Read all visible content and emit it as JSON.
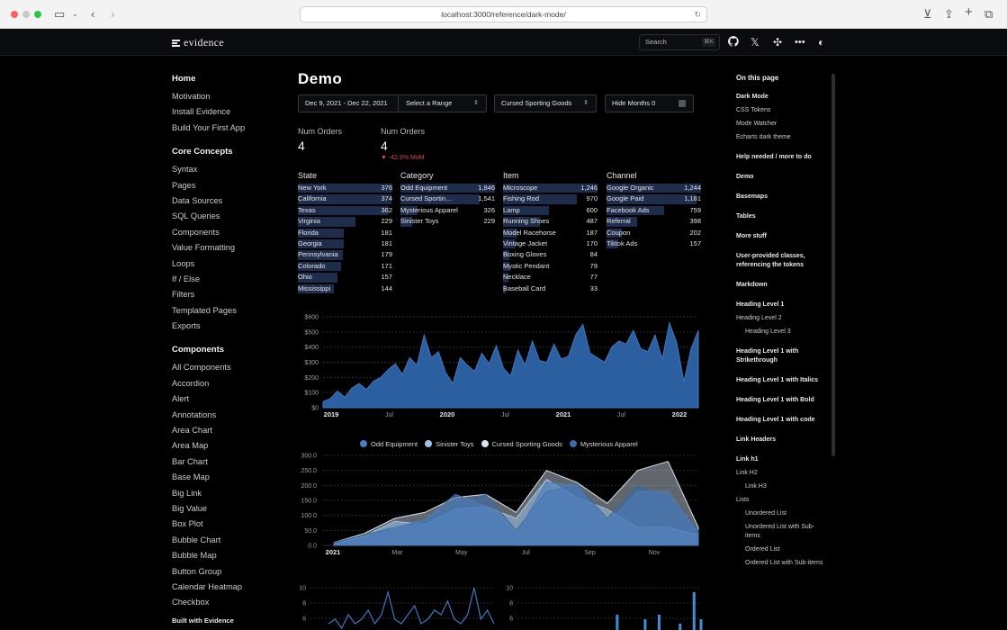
{
  "browser": {
    "url": "localhost:3000/reference/dark-mode/"
  },
  "header": {
    "logo": "evidence",
    "search_placeholder": "Search",
    "search_shortcut": "⌘K"
  },
  "sidebar": {
    "home": "Home",
    "top_items": [
      "Motivation",
      "Install Evidence",
      "Build Your First App"
    ],
    "core_title": "Core Concepts",
    "core_items": [
      "Syntax",
      "Pages",
      "Data Sources",
      "SQL Queries",
      "Components",
      "Value Formatting",
      "Loops",
      "If / Else",
      "Filters",
      "Templated Pages",
      "Exports"
    ],
    "components_title": "Components",
    "components_items": [
      "All Components",
      "Accordion",
      "Alert",
      "Annotations",
      "Area Chart",
      "Area Map",
      "Bar Chart",
      "Base Map",
      "Big Link",
      "Big Value",
      "Box Plot",
      "Bubble Chart",
      "Bubble Map",
      "Button Group",
      "Calendar Heatmap",
      "Checkbox"
    ],
    "footer": "Built with Evidence"
  },
  "main": {
    "title": "Demo",
    "date_range": "Dec 9, 2021 - Dec 22, 2021",
    "range_select": "Select a Range",
    "category_select": "Cursed Sporting Goods",
    "hide_months": "Hide Months 0",
    "big_values": [
      {
        "label": "Num Orders",
        "value": "4"
      },
      {
        "label": "Num Orders",
        "value": "4",
        "delta": "▼ -42.9% MoM"
      }
    ]
  },
  "tables": [
    {
      "header": "State",
      "rows": [
        [
          "New York",
          "376"
        ],
        [
          "California",
          "374"
        ],
        [
          "Texas",
          "362"
        ],
        [
          "Virginia",
          "229"
        ],
        [
          "Florida",
          "181"
        ],
        [
          "Georgia",
          "181"
        ],
        [
          "Pennsylvania",
          "179"
        ],
        [
          "Colorado",
          "171"
        ],
        [
          "Ohio",
          "157"
        ],
        [
          "Mississippi",
          "144"
        ]
      ]
    },
    {
      "header": "Category",
      "rows": [
        [
          "Odd Equipment",
          "1,846"
        ],
        [
          "Cursed Sportin...",
          "1,541"
        ],
        [
          "Mysterious Apparel",
          "326"
        ],
        [
          "Sinister Toys",
          "229"
        ]
      ]
    },
    {
      "header": "Item",
      "rows": [
        [
          "Microscope",
          "1,246"
        ],
        [
          "Fishing Rod",
          "970"
        ],
        [
          "Lamp",
          "600"
        ],
        [
          "Running Shoes",
          "487"
        ],
        [
          "Model Racehorse",
          "187"
        ],
        [
          "Vintage Jacket",
          "170"
        ],
        [
          "Boxing Gloves",
          "84"
        ],
        [
          "Mystic Pendant",
          "79"
        ],
        [
          "Necklace",
          "77"
        ],
        [
          "Baseball Card",
          "33"
        ]
      ]
    },
    {
      "header": "Channel",
      "rows": [
        [
          "Google Organic",
          "1,244"
        ],
        [
          "Google Paid",
          "1,181"
        ],
        [
          "Facebook Ads",
          "759"
        ],
        [
          "Referral",
          "398"
        ],
        [
          "Coupon",
          "202"
        ],
        [
          "Tiktok Ads",
          "157"
        ]
      ]
    }
  ],
  "chart_data": [
    {
      "type": "area",
      "title": "",
      "y_ticks": [
        "$600",
        "$500",
        "$400",
        "$300",
        "$200",
        "$100",
        "$0"
      ],
      "x_ticks": [
        "2019",
        "Jul",
        "2020",
        "Jul",
        "2021",
        "Jul",
        "2022"
      ],
      "ylim": [
        0,
        600
      ],
      "values": [
        40,
        60,
        110,
        70,
        130,
        160,
        120,
        175,
        200,
        250,
        290,
        220,
        330,
        280,
        480,
        330,
        370,
        230,
        160,
        330,
        280,
        240,
        360,
        290,
        410,
        260,
        210,
        380,
        280,
        440,
        310,
        300,
        420,
        320,
        340,
        480,
        550,
        360,
        330,
        300,
        400,
        440,
        420,
        510,
        390,
        370,
        480,
        320,
        560,
        430,
        170,
        390,
        510
      ]
    },
    {
      "type": "area",
      "title": "",
      "legend": [
        "Odd Equipment",
        "Sinister Toys",
        "Cursed Sporting Goods",
        "Mysterious Apparel"
      ],
      "legend_colors": [
        "#4b7dbf",
        "#9fc3e8",
        "#d7e3f0",
        "#3a6aa8"
      ],
      "y_ticks": [
        "300.0",
        "250.0",
        "200.0",
        "150.0",
        "100.0",
        "50.0",
        "0.0"
      ],
      "x_ticks": [
        "2021",
        "Mar",
        "May",
        "Jul",
        "Sep",
        "Nov"
      ],
      "ylim": [
        0,
        300
      ],
      "series": [
        {
          "name": "Odd Equipment",
          "values": [
            5,
            20,
            60,
            85,
            170,
            130,
            35,
            210,
            200,
            70,
            180,
            180,
            40
          ]
        },
        {
          "name": "Sinister Toys",
          "values": [
            5,
            30,
            80,
            70,
            120,
            130,
            90,
            220,
            160,
            120,
            60,
            60,
            35
          ]
        },
        {
          "name": "Cursed Sporting Goods",
          "values": [
            10,
            40,
            90,
            110,
            160,
            170,
            110,
            250,
            210,
            140,
            250,
            280,
            60
          ]
        },
        {
          "name": "Mysterious Apparel",
          "values": [
            10,
            35,
            60,
            80,
            140,
            170,
            50,
            180,
            200,
            90,
            200,
            160,
            50
          ]
        }
      ]
    },
    {
      "type": "line",
      "title": "",
      "y_ticks": [
        "10",
        "8",
        "6"
      ],
      "values": [
        2,
        3,
        1,
        4,
        2,
        3,
        5,
        2,
        4,
        9,
        3,
        2,
        4,
        6,
        2,
        3,
        5,
        4,
        7,
        3,
        2,
        4,
        10,
        3,
        5,
        2
      ]
    },
    {
      "type": "bar",
      "title": "",
      "y_ticks": [
        "10",
        "8",
        "6"
      ],
      "values": [
        0,
        0,
        0,
        0,
        0,
        0,
        0,
        0,
        0,
        0,
        0,
        0,
        0,
        4,
        0,
        0,
        0,
        3,
        0,
        4,
        0,
        0,
        2,
        0,
        9,
        3
      ]
    }
  ],
  "toc": {
    "title": "On this page",
    "items": [
      {
        "t": "Dark Mode",
        "s": "b2"
      },
      {
        "t": "CSS Tokens",
        "s": ""
      },
      {
        "t": "Mode Watcher",
        "s": ""
      },
      {
        "t": "Echarts dark theme",
        "s": "last"
      },
      {
        "t": "Help needed / more to do",
        "s": "b"
      },
      {
        "t": "Demo",
        "s": "b"
      },
      {
        "t": "Basemaps",
        "s": "b"
      },
      {
        "t": "Tables",
        "s": "b"
      },
      {
        "t": "More stuff",
        "s": "b"
      },
      {
        "t": "User-provided classes, referencing the tokens",
        "s": "b"
      },
      {
        "t": "Markdown",
        "s": "b"
      },
      {
        "t": "Heading Level 1",
        "s": "b2"
      },
      {
        "t": "Heading Level 2",
        "s": ""
      },
      {
        "t": "Heading Level 3",
        "s": "l2 last"
      },
      {
        "t": "Heading Level 1 with Strikethrough",
        "s": "b"
      },
      {
        "t": "Heading Level 1 with Italics",
        "s": "b"
      },
      {
        "t": "Heading Level 1 with Bold",
        "s": "b"
      },
      {
        "t": "Heading Level 1 with code",
        "s": "b"
      },
      {
        "t": "Link Headers",
        "s": "b"
      },
      {
        "t": "Link h1",
        "s": "b2"
      },
      {
        "t": "Link H2",
        "s": ""
      },
      {
        "t": "Link H3",
        "s": "l2"
      },
      {
        "t": "Lists",
        "s": ""
      },
      {
        "t": "Unordered List",
        "s": "l2"
      },
      {
        "t": "Unordered List with Sub-items",
        "s": "l2"
      },
      {
        "t": "Ordered List",
        "s": "l2"
      },
      {
        "t": "Ordered List with Sub-items",
        "s": "l2"
      }
    ]
  }
}
